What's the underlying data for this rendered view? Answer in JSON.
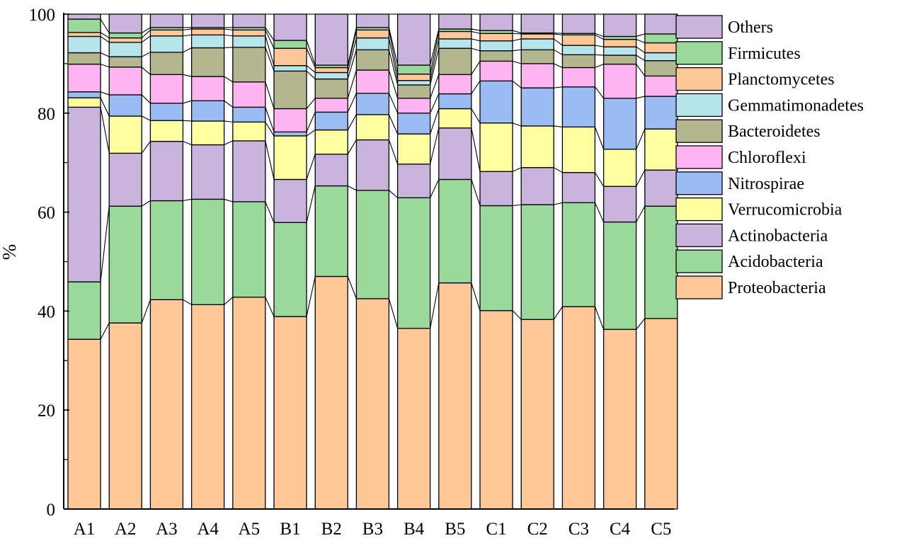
{
  "chart_data": {
    "type": "bar",
    "stacked": true,
    "connectors": true,
    "title": "",
    "xlabel": "",
    "ylabel": "%",
    "ylim": [
      0,
      100
    ],
    "yticks": [
      0,
      20,
      40,
      60,
      80,
      100
    ],
    "legend_position": "right",
    "categories": [
      "A1",
      "A2",
      "A3",
      "A4",
      "A5",
      "B1",
      "B2",
      "B3",
      "B4",
      "B5",
      "C1",
      "C2",
      "C3",
      "C4",
      "C5"
    ],
    "series": [
      {
        "name": "Proteobacteria",
        "color": "#FEC797",
        "values": [
          34.3,
          37.6,
          42.3,
          41.3,
          42.8,
          38.9,
          47.0,
          42.5,
          36.5,
          45.7,
          40.1,
          38.3,
          40.9,
          36.3,
          38.5
        ]
      },
      {
        "name": "Acidobacteria",
        "color": "#9AD89B",
        "values": [
          11.6,
          23.6,
          20.0,
          21.3,
          19.3,
          19.0,
          18.3,
          21.9,
          26.4,
          20.9,
          21.2,
          23.2,
          21.0,
          21.7,
          22.7
        ]
      },
      {
        "name": "Actinobacteria",
        "color": "#C8B4DC",
        "values": [
          35.3,
          10.7,
          12.0,
          11.0,
          12.3,
          8.7,
          6.4,
          10.2,
          6.8,
          10.4,
          6.9,
          7.5,
          6.1,
          7.2,
          7.3
        ]
      },
      {
        "name": "Verrucomicrobia",
        "color": "#FEFEA0",
        "values": [
          1.9,
          7.5,
          4.2,
          4.8,
          3.8,
          8.8,
          4.9,
          5.1,
          6.1,
          3.9,
          9.8,
          8.4,
          9.2,
          7.5,
          8.3
        ]
      },
      {
        "name": "Nitrospirae",
        "color": "#9ABCF2",
        "values": [
          1.2,
          4.3,
          3.5,
          4.1,
          3.0,
          0.8,
          3.6,
          4.3,
          4.2,
          3.0,
          8.5,
          7.7,
          8.1,
          10.3,
          6.6
        ]
      },
      {
        "name": "Chloroflexi",
        "color": "#FEB4F0",
        "values": [
          5.6,
          5.6,
          5.8,
          4.9,
          5.1,
          4.7,
          2.8,
          4.7,
          3.0,
          3.9,
          4.0,
          4.9,
          3.9,
          6.9,
          4.1
        ]
      },
      {
        "name": "Bacteroidetes",
        "color": "#B3B68E",
        "values": [
          2.3,
          2.1,
          4.5,
          5.8,
          7.0,
          7.6,
          3.9,
          4.1,
          2.7,
          5.3,
          2.1,
          2.8,
          2.6,
          1.8,
          3.1
        ]
      },
      {
        "name": "Gemmatimonadetes",
        "color": "#B5E4EA",
        "values": [
          3.3,
          2.9,
          3.3,
          2.6,
          2.3,
          1.1,
          1.3,
          2.4,
          0.9,
          1.9,
          2.0,
          2.2,
          1.9,
          1.7,
          1.6
        ]
      },
      {
        "name": "Planctomycetes",
        "color": "#FEC797",
        "values": [
          0.8,
          0.9,
          1.2,
          1.2,
          1.2,
          3.5,
          1.0,
          1.6,
          1.3,
          1.5,
          1.5,
          1.0,
          2.1,
          1.5,
          2.0
        ]
      },
      {
        "name": "Firmicutes",
        "color": "#9AD89B",
        "values": [
          2.7,
          1.0,
          0.5,
          0.3,
          0.5,
          1.6,
          0.5,
          0.5,
          1.8,
          0.5,
          0.6,
          0.2,
          0.3,
          0.6,
          1.8
        ]
      },
      {
        "name": "Others",
        "color": "#C8B4DC",
        "values": [
          1.0,
          3.8,
          2.7,
          2.7,
          2.7,
          5.3,
          10.3,
          2.7,
          10.3,
          3.0,
          3.3,
          3.8,
          3.9,
          4.5,
          4.0
        ]
      }
    ]
  }
}
